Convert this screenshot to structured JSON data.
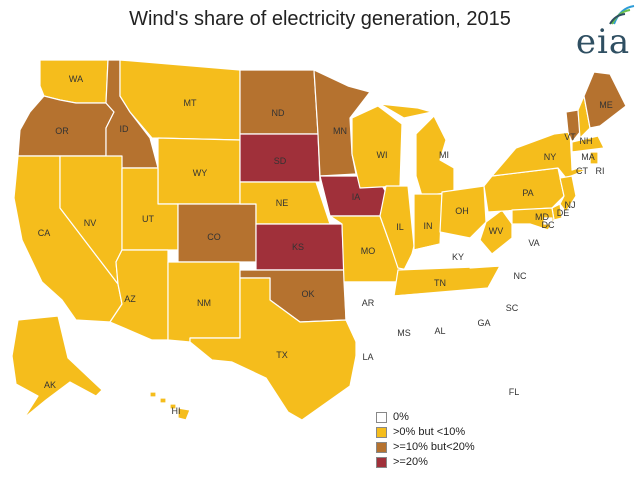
{
  "title": "Wind's share of electricity generation, 2015",
  "logo": {
    "text": "eia",
    "icon": "eia-sunburst-logo"
  },
  "colors": {
    "c0": "#ffffff",
    "c1": "#f5bd1c",
    "c2": "#b5722f",
    "c3": "#a0303a",
    "border": "#ffffff",
    "zero_border": "#bbbbbb"
  },
  "legend": [
    {
      "label": "0%",
      "category": "c0"
    },
    {
      "label": ">0% but <10%",
      "category": "c1"
    },
    {
      "label": ">=10% but<20%",
      "category": "c2"
    },
    {
      "label": ">=20%",
      "category": "c3"
    }
  ],
  "states": [
    {
      "abbr": "WA",
      "category": "c1"
    },
    {
      "abbr": "OR",
      "category": "c2"
    },
    {
      "abbr": "CA",
      "category": "c1"
    },
    {
      "abbr": "ID",
      "category": "c2"
    },
    {
      "abbr": "NV",
      "category": "c1"
    },
    {
      "abbr": "MT",
      "category": "c1"
    },
    {
      "abbr": "WY",
      "category": "c1"
    },
    {
      "abbr": "UT",
      "category": "c1"
    },
    {
      "abbr": "AZ",
      "category": "c1"
    },
    {
      "abbr": "CO",
      "category": "c2"
    },
    {
      "abbr": "NM",
      "category": "c1"
    },
    {
      "abbr": "ND",
      "category": "c2"
    },
    {
      "abbr": "SD",
      "category": "c3"
    },
    {
      "abbr": "NE",
      "category": "c1"
    },
    {
      "abbr": "KS",
      "category": "c3"
    },
    {
      "abbr": "OK",
      "category": "c2"
    },
    {
      "abbr": "TX",
      "category": "c1"
    },
    {
      "abbr": "MN",
      "category": "c2"
    },
    {
      "abbr": "IA",
      "category": "c3"
    },
    {
      "abbr": "MO",
      "category": "c1"
    },
    {
      "abbr": "AR",
      "category": "c0"
    },
    {
      "abbr": "LA",
      "category": "c0"
    },
    {
      "abbr": "WI",
      "category": "c1"
    },
    {
      "abbr": "IL",
      "category": "c1"
    },
    {
      "abbr": "MI",
      "category": "c1"
    },
    {
      "abbr": "IN",
      "category": "c1"
    },
    {
      "abbr": "OH",
      "category": "c1"
    },
    {
      "abbr": "KY",
      "category": "c0"
    },
    {
      "abbr": "TN",
      "category": "c1"
    },
    {
      "abbr": "MS",
      "category": "c0"
    },
    {
      "abbr": "AL",
      "category": "c0"
    },
    {
      "abbr": "GA",
      "category": "c0"
    },
    {
      "abbr": "FL",
      "category": "c0"
    },
    {
      "abbr": "SC",
      "category": "c0"
    },
    {
      "abbr": "NC",
      "category": "c0"
    },
    {
      "abbr": "VA",
      "category": "c0"
    },
    {
      "abbr": "WV",
      "category": "c1"
    },
    {
      "abbr": "PA",
      "category": "c1"
    },
    {
      "abbr": "NY",
      "category": "c1"
    },
    {
      "abbr": "VT",
      "category": "c2"
    },
    {
      "abbr": "NH",
      "category": "c1"
    },
    {
      "abbr": "ME",
      "category": "c2"
    },
    {
      "abbr": "MA",
      "category": "c1"
    },
    {
      "abbr": "RI",
      "category": "c1"
    },
    {
      "abbr": "CT",
      "category": "c0"
    },
    {
      "abbr": "NJ",
      "category": "c1"
    },
    {
      "abbr": "DE",
      "category": "c1"
    },
    {
      "abbr": "MD",
      "category": "c1"
    },
    {
      "abbr": "DC",
      "category": "c0"
    },
    {
      "abbr": "AK",
      "category": "c1"
    },
    {
      "abbr": "HI",
      "category": "c1"
    }
  ]
}
